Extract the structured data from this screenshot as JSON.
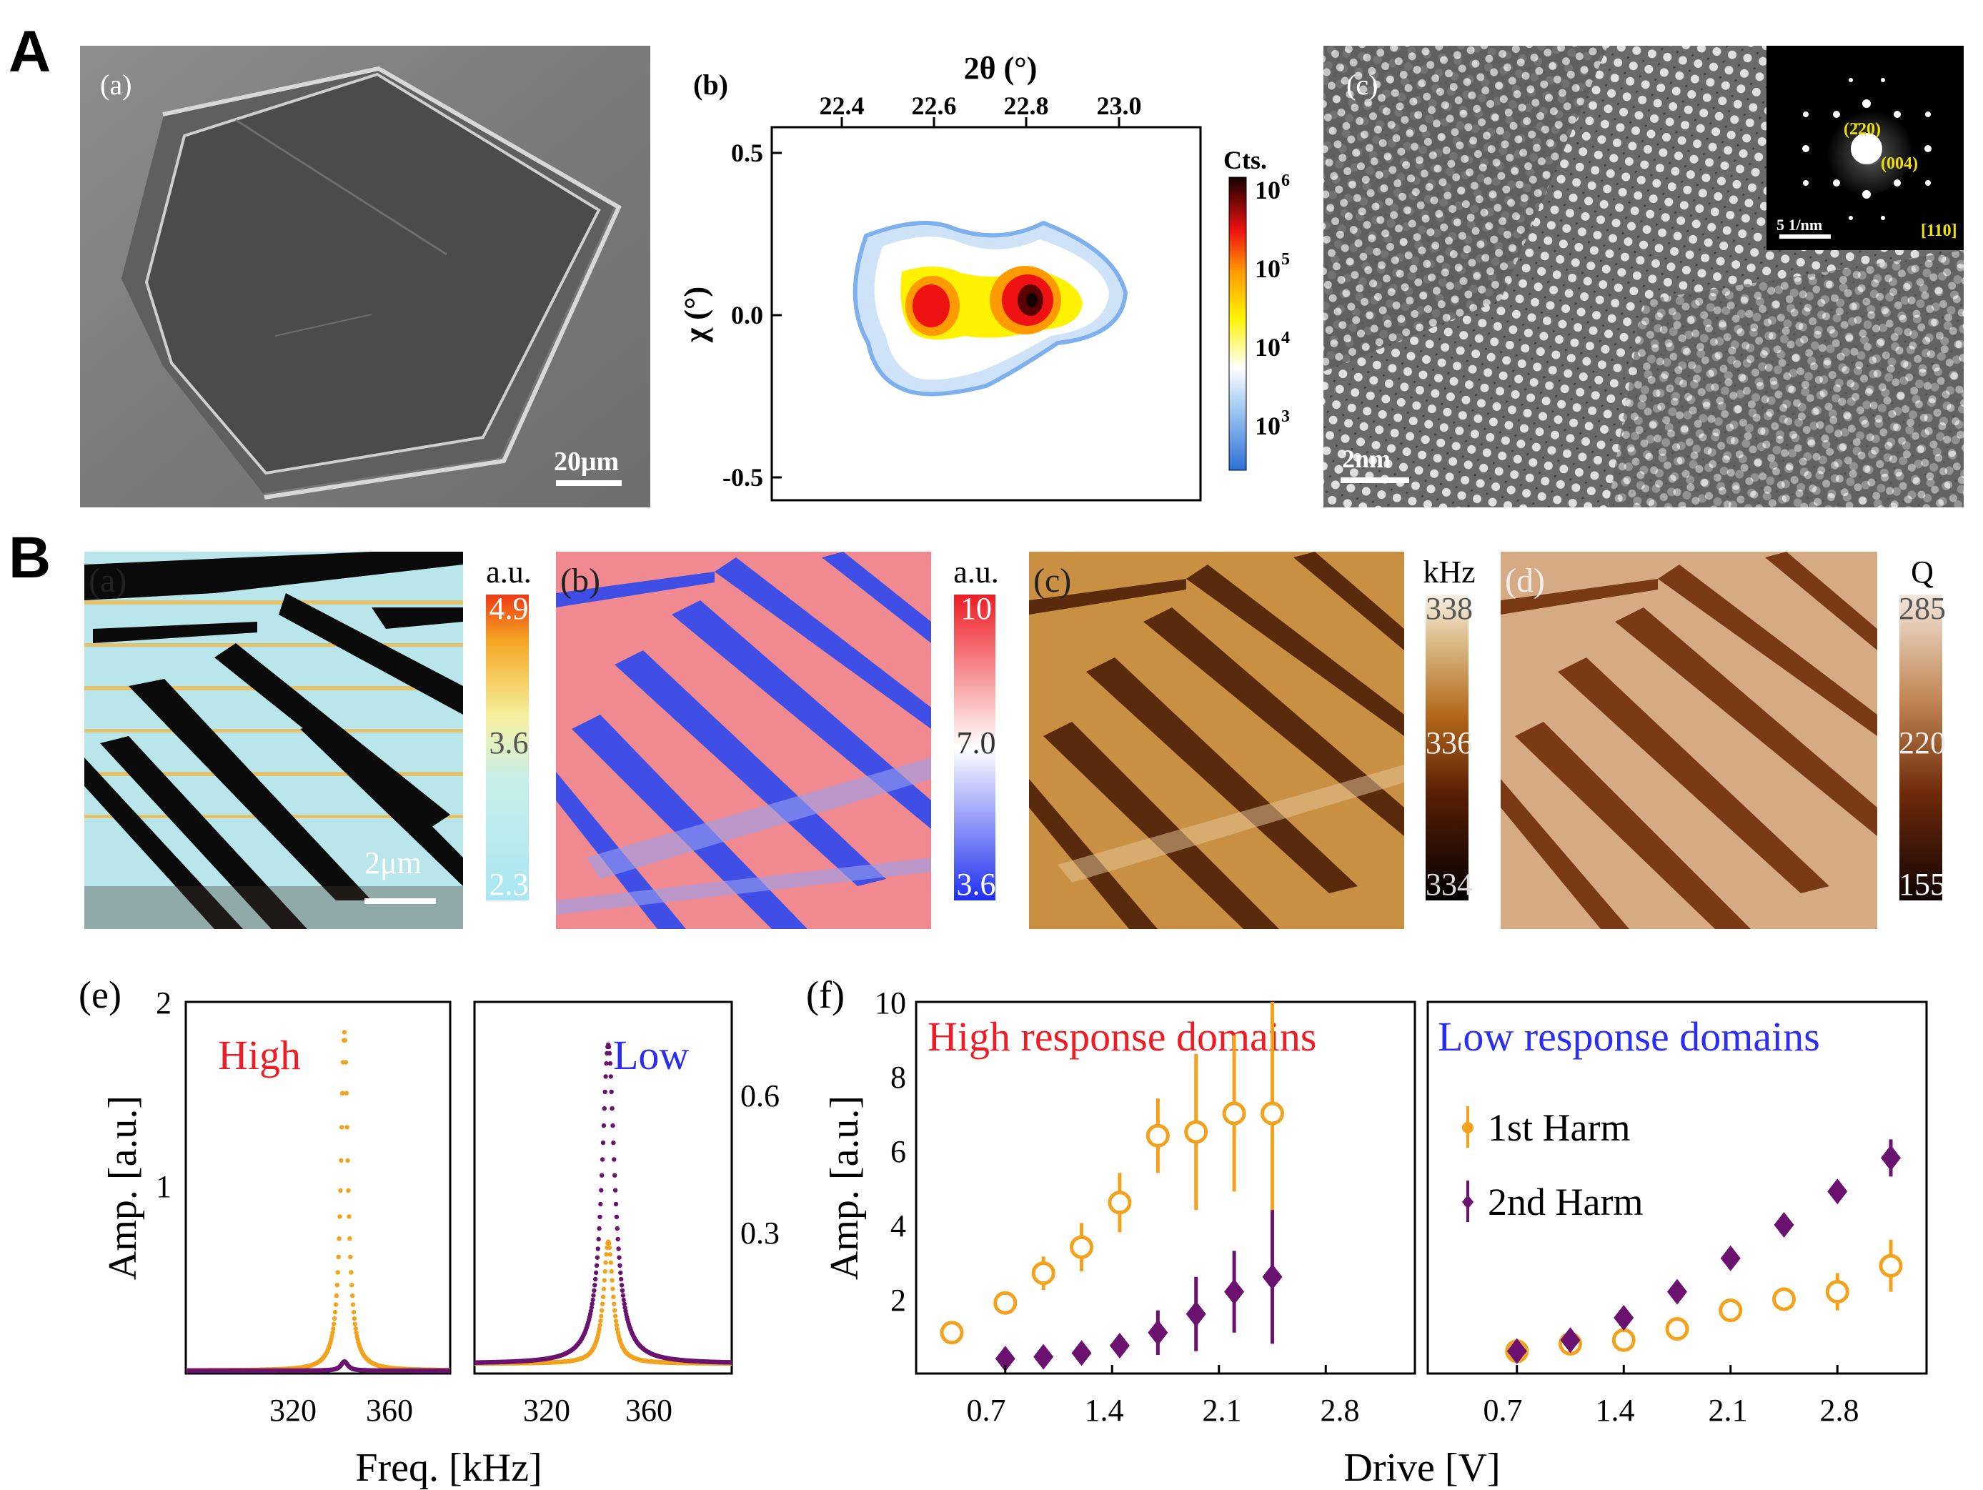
{
  "panel_labels": {
    "A": "A",
    "B": "B"
  },
  "row_a": {
    "a": {
      "label": "(a)",
      "scale": "20μm"
    },
    "b": {
      "label": "(b)",
      "top_axis": "2θ (°)",
      "left_axis": "χ (°)",
      "colorbar_title": "Cts.",
      "colorbar_ticks": [
        "10",
        "10",
        "10",
        "10"
      ],
      "colorbar_exps": [
        "6",
        "5",
        "4",
        "3"
      ],
      "xticks": [
        "22.4",
        "22.6",
        "22.8",
        "23.0"
      ],
      "yticks": [
        "0.5",
        "0.0",
        "-0.5"
      ]
    },
    "c": {
      "label": "(c)",
      "scale": "2nm",
      "inset_labels": [
        "(2̄20)",
        "(004)",
        "[110]"
      ],
      "inset_scale": "5 1/nm"
    }
  },
  "row_b": {
    "a": {
      "label": "(a)",
      "unit": "a.u.",
      "ticks": [
        "4.9",
        "3.6",
        "2.3"
      ],
      "scale": "2μm"
    },
    "b": {
      "label": "(b)",
      "unit": "a.u.",
      "ticks": [
        "10",
        "7.0",
        "3.6"
      ]
    },
    "c": {
      "label": "(c)",
      "unit": "kHz",
      "ticks": [
        "338",
        "336",
        "334"
      ]
    },
    "d": {
      "label": "(d)",
      "unit": "Q",
      "ticks": [
        "285",
        "220",
        "155"
      ]
    }
  },
  "colors": {
    "orange": "#f2a21c",
    "purple": "#6b1270",
    "red": "#ee1c24",
    "blue": "#2b2ef0"
  },
  "chart_data": [
    {
      "id": "e",
      "label": "(e)",
      "type": "line",
      "ylabel": "Amp. [a.u.]",
      "xlabel": "Freq. [kHz]",
      "panels": [
        {
          "title": "High",
          "xticks": [
            "320",
            "360"
          ],
          "yticks": [
            "2",
            "1"
          ],
          "ylim": [
            0,
            2
          ],
          "xlim": [
            280,
            380
          ],
          "series": [
            {
              "color": "orange",
              "peak_x": 340,
              "peak_y": 1.85
            },
            {
              "color": "purple",
              "peak_x": 340,
              "peak_y": 0.05
            }
          ]
        },
        {
          "title": "Low",
          "xticks": [
            "320",
            "360"
          ],
          "yticks": [
            "0.6",
            "0.3"
          ],
          "ylim": [
            0,
            0.78
          ],
          "xlim": [
            280,
            380
          ],
          "series": [
            {
              "color": "orange",
              "peak_x": 332,
              "peak_y": 0.26
            },
            {
              "color": "purple",
              "peak_x": 332,
              "peak_y": 0.68
            }
          ]
        }
      ]
    },
    {
      "id": "f",
      "label": "(f)",
      "type": "scatter",
      "ylabel": "Amp. [a.u.]",
      "xlabel": "Drive [V]",
      "yticks": [
        "10",
        "8",
        "6",
        "4",
        "2"
      ],
      "ylim": [
        0,
        10
      ],
      "xticks": [
        "0.7",
        "1.4",
        "2.1",
        "2.8"
      ],
      "xlim": [
        0.35,
        3.15
      ],
      "legend": [
        "1st  Harm",
        "2nd Harm"
      ],
      "panels": [
        {
          "title": "High response domains",
          "title_color": "red",
          "series": [
            {
              "name": "1st  Harm",
              "marker": "circle",
              "color": "orange",
              "x": [
                0.35,
                0.7,
                0.95,
                1.2,
                1.45,
                1.7,
                1.95,
                2.2,
                2.45
              ],
              "y": [
                1.1,
                1.9,
                2.7,
                3.4,
                4.6,
                6.4,
                6.5,
                7.0,
                7.0
              ],
              "err": [
                0.1,
                0.3,
                0.45,
                0.65,
                0.8,
                1.0,
                2.1,
                2.1,
                3.1
              ]
            },
            {
              "name": "2nd Harm",
              "marker": "diamond",
              "color": "purple",
              "x": [
                0.7,
                0.95,
                1.2,
                1.45,
                1.7,
                1.95,
                2.2,
                2.45
              ],
              "y": [
                0.4,
                0.45,
                0.55,
                0.75,
                1.1,
                1.6,
                2.2,
                2.6
              ],
              "err": [
                0.05,
                0.1,
                0.1,
                0.2,
                0.6,
                1.0,
                1.1,
                1.8
              ]
            }
          ]
        },
        {
          "title": "Low response domains",
          "title_color": "blue",
          "series": [
            {
              "name": "1st  Harm",
              "marker": "circle",
              "color": "orange",
              "x": [
                0.7,
                1.05,
                1.4,
                1.75,
                2.1,
                2.45,
                2.8,
                3.15
              ],
              "y": [
                0.6,
                0.8,
                0.9,
                1.2,
                1.7,
                2.0,
                2.2,
                2.9
              ],
              "err": [
                0.05,
                0.05,
                0.1,
                0.1,
                0.2,
                0.2,
                0.5,
                0.7
              ]
            },
            {
              "name": "2nd Harm",
              "marker": "diamond",
              "color": "purple",
              "x": [
                0.7,
                1.05,
                1.4,
                1.75,
                2.1,
                2.45,
                2.8,
                3.15
              ],
              "y": [
                0.6,
                0.9,
                1.5,
                2.2,
                3.1,
                4.0,
                4.9,
                5.8
              ],
              "err": [
                0.1,
                0.1,
                0.1,
                0.1,
                0.15,
                0.1,
                0.1,
                0.5
              ]
            }
          ]
        }
      ]
    }
  ]
}
